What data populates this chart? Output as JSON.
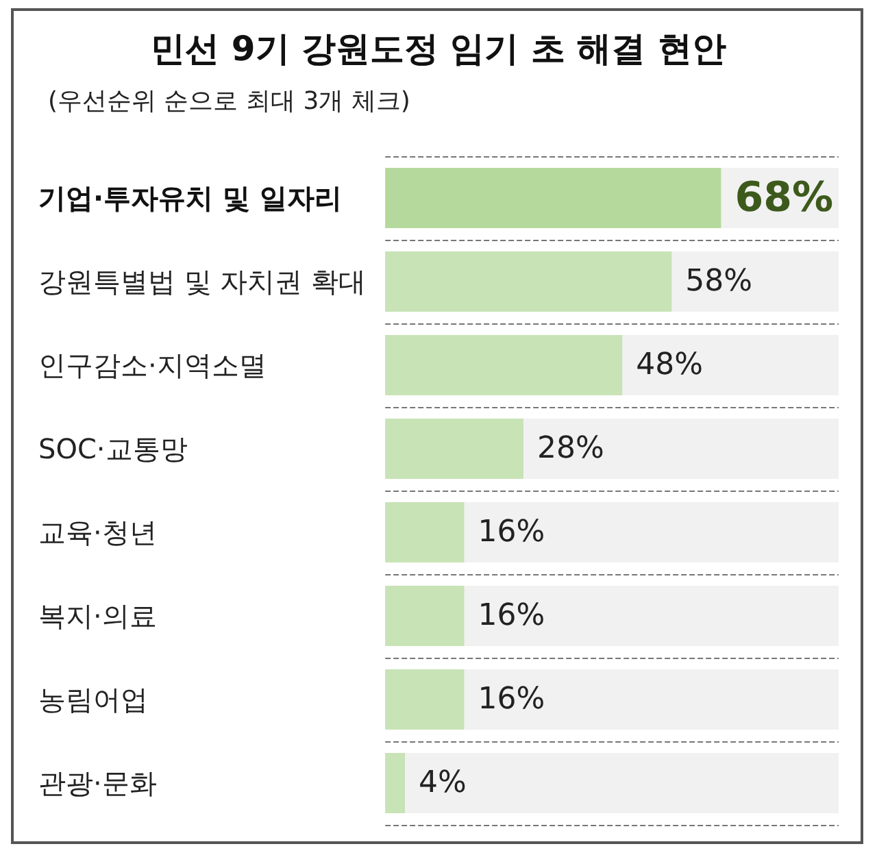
{
  "chart_data": {
    "type": "bar",
    "orientation": "horizontal",
    "title": "민선 9기 강원도정 임기 초 해결 현안",
    "subtitle": "(우선순위 순으로 최대 3개 체크)",
    "categories": [
      "기업·투자유치 및 일자리",
      "강원특별법 및 자치권 확대",
      "인구감소·지역소멸",
      "SOC·교통망",
      "교육·청년",
      "복지·의료",
      "농림어업",
      "관광·문화"
    ],
    "values": [
      68,
      58,
      48,
      28,
      16,
      16,
      16,
      4
    ],
    "colors": [
      "#b5d99c",
      "#c8e3b6",
      "#c8e3b6",
      "#c8e3b6",
      "#c8e3b6",
      "#c8e3b6",
      "#c8e3b6",
      "#c8e3b6"
    ],
    "value_labels": [
      "68%",
      "58%",
      "48%",
      "28%",
      "16%",
      "16%",
      "16%",
      "4%"
    ]
  }
}
